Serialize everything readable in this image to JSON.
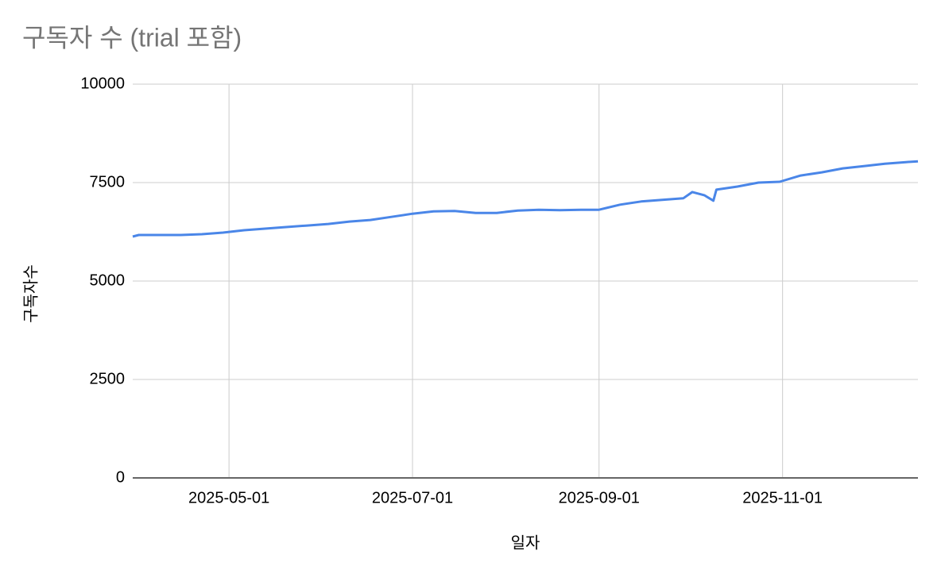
{
  "chart_data": {
    "type": "line",
    "title": "구독자 수 (trial 포함)",
    "x_label": "일자",
    "y_label": "구독자수",
    "x": [
      "2025-03-30",
      "2025-04-01",
      "2025-04-08",
      "2025-04-15",
      "2025-04-22",
      "2025-04-29",
      "2025-05-06",
      "2025-05-13",
      "2025-05-20",
      "2025-05-27",
      "2025-06-03",
      "2025-06-10",
      "2025-06-17",
      "2025-06-24",
      "2025-07-01",
      "2025-07-08",
      "2025-07-15",
      "2025-07-22",
      "2025-07-29",
      "2025-08-05",
      "2025-08-12",
      "2025-08-19",
      "2025-08-26",
      "2025-09-01",
      "2025-09-08",
      "2025-09-15",
      "2025-09-22",
      "2025-09-29",
      "2025-10-02",
      "2025-10-06",
      "2025-10-09",
      "2025-10-10",
      "2025-10-17",
      "2025-10-24",
      "2025-10-31",
      "2025-11-07",
      "2025-11-14",
      "2025-11-21",
      "2025-11-28",
      "2025-12-05",
      "2025-12-12",
      "2025-12-16"
    ],
    "values": [
      6130,
      6170,
      6170,
      6170,
      6190,
      6230,
      6290,
      6330,
      6370,
      6410,
      6450,
      6510,
      6550,
      6630,
      6710,
      6770,
      6780,
      6730,
      6730,
      6790,
      6810,
      6800,
      6810,
      6810,
      6940,
      7020,
      7060,
      7100,
      7260,
      7180,
      7040,
      7320,
      7400,
      7500,
      7520,
      7680,
      7760,
      7860,
      7920,
      7980,
      8020,
      8040
    ],
    "color": "#4a86e8",
    "xlim": [
      "2025-03-30",
      "2025-12-16"
    ],
    "xticks": [
      "2025-05-01",
      "2025-07-01",
      "2025-09-01",
      "2025-11-01"
    ],
    "ylim": [
      0,
      10000
    ],
    "yticks": [
      0,
      2500,
      5000,
      7500,
      10000
    ],
    "grid": true
  }
}
